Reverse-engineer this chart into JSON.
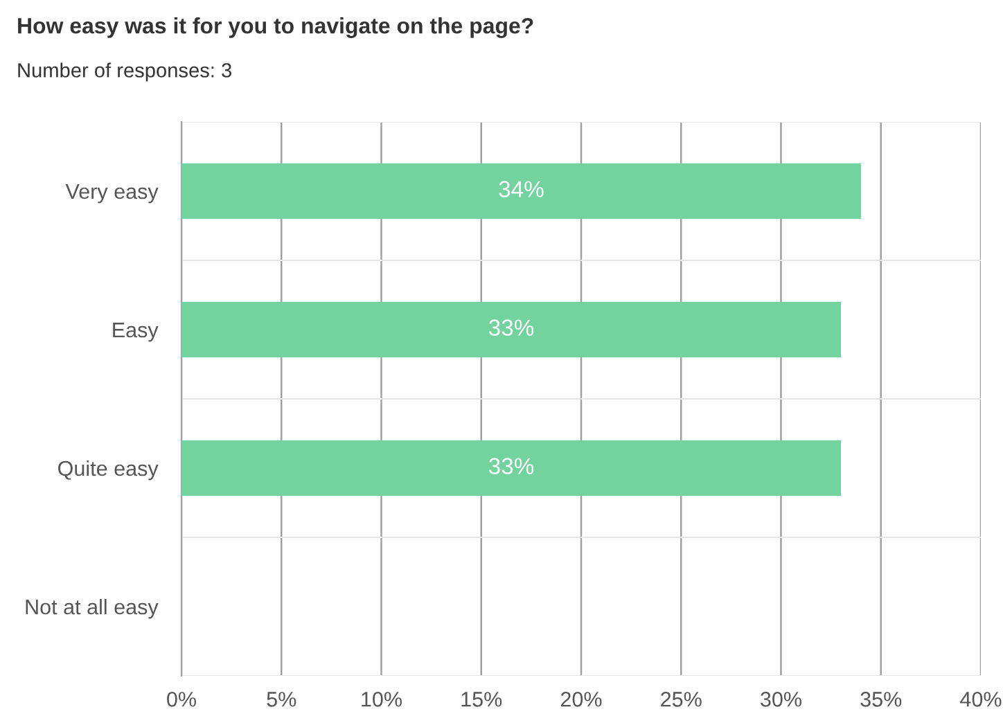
{
  "chart_data": {
    "type": "bar",
    "orientation": "horizontal",
    "title": "How easy was it for you to navigate on the page?",
    "subtitle": "Number of responses: 3",
    "categories": [
      "Very easy",
      "Easy",
      "Quite easy",
      "Not at all easy"
    ],
    "values": [
      34,
      33,
      33,
      0
    ],
    "color": "#72d39e",
    "value_labels": [
      "34%",
      "33%",
      "33%",
      null
    ],
    "xlim": [
      0,
      40
    ],
    "xticks": [
      {
        "value": 0,
        "label": "0%"
      },
      {
        "value": 5,
        "label": "5%"
      },
      {
        "value": 10,
        "label": "10%"
      },
      {
        "value": 15,
        "label": "15%"
      },
      {
        "value": 20,
        "label": "20%"
      },
      {
        "value": 25,
        "label": "25%"
      },
      {
        "value": 30,
        "label": "30%"
      },
      {
        "value": 35,
        "label": "35%"
      },
      {
        "value": 40,
        "label": "40%"
      }
    ],
    "grid": "x",
    "legend": false
  }
}
